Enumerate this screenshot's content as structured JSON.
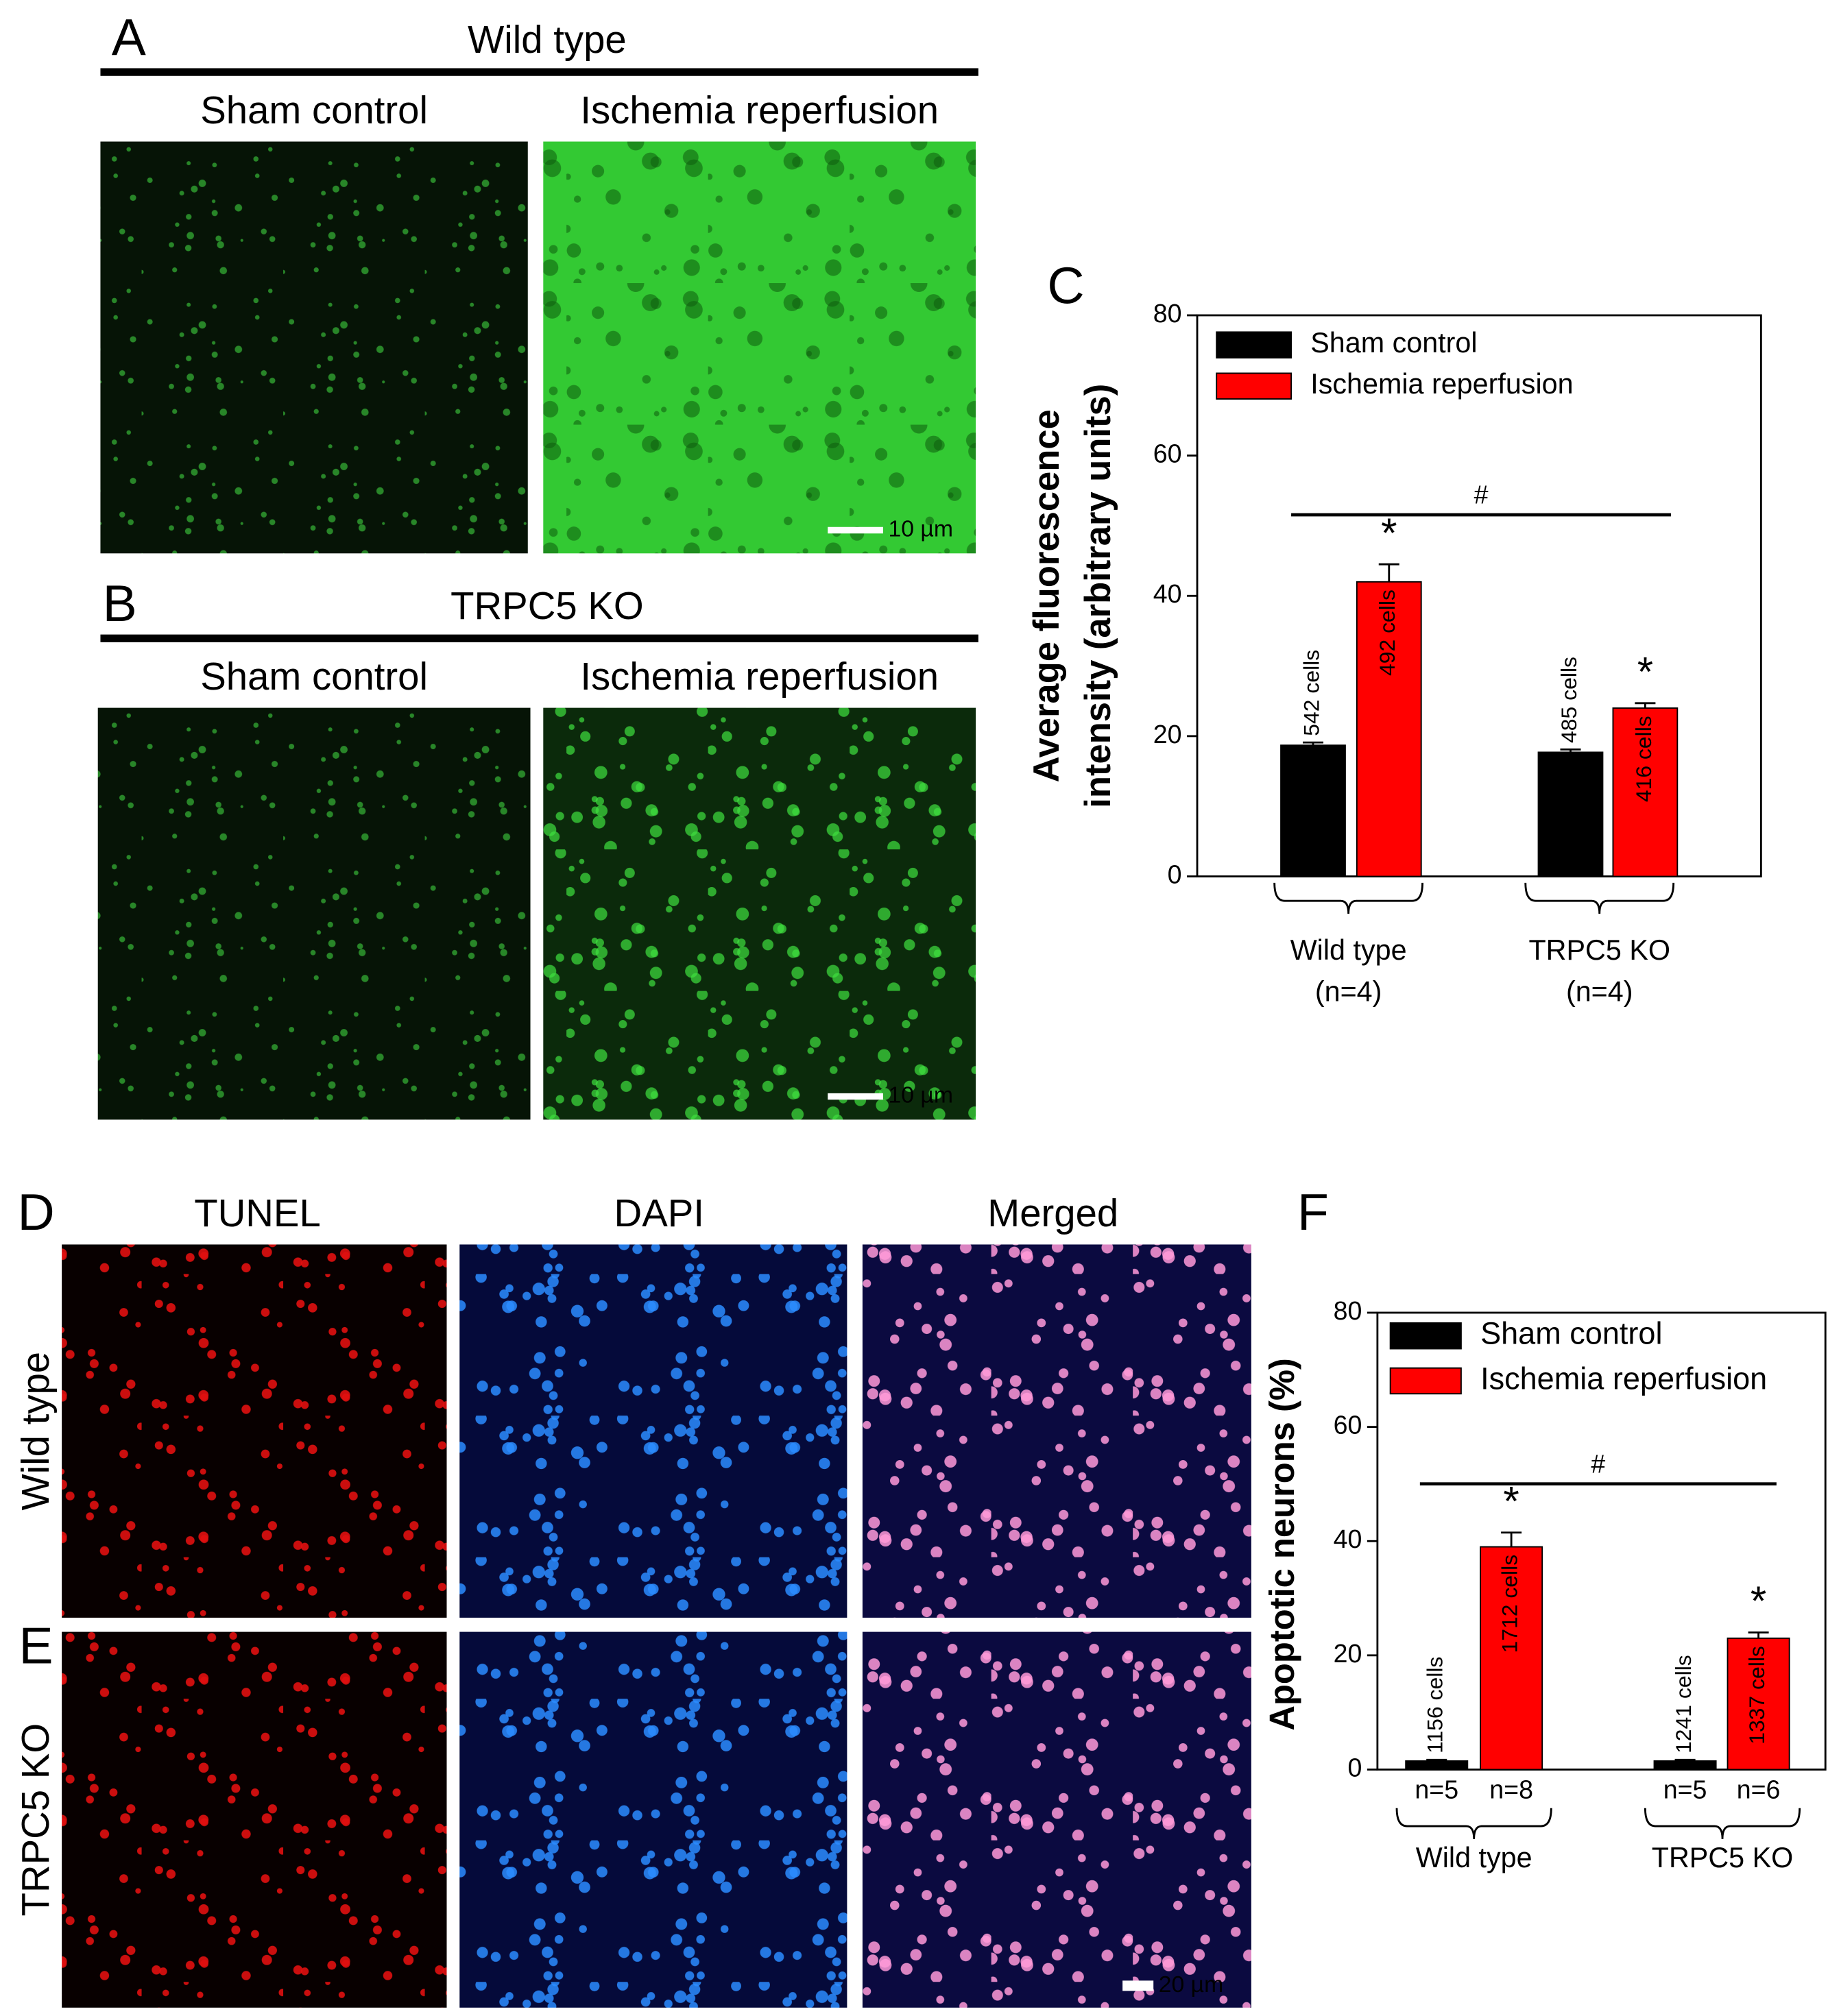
{
  "panels": [
    {
      "label": "A",
      "title": "Wild type",
      "columns": [
        "Sham control",
        "Ischemia reperfusion"
      ],
      "scale_bar": "10 µm"
    },
    {
      "label": "B",
      "title": "TRPC5 KO",
      "columns": [
        "Sham control",
        "Ischemia reperfusion"
      ],
      "scale_bar": "10 µm"
    }
  ],
  "tunel_panels": {
    "labels": [
      "D",
      "E"
    ],
    "columns": [
      "TUNEL",
      "DAPI",
      "Merged"
    ],
    "rows": [
      "Wild type",
      "TRPC5 KO"
    ],
    "scale_bar": "20 µm"
  },
  "chart_data": [
    {
      "type": "bar",
      "panel_label": "C",
      "ylabel": [
        "Average fluorescence",
        "intensity (arbitrary units)"
      ],
      "ylim": [
        0,
        80
      ],
      "yticks": [
        0,
        20,
        40,
        60,
        80
      ],
      "categories": [
        "Wild type",
        "TRPC5 KO"
      ],
      "category_notes": [
        "(n=4)",
        "(n=4)"
      ],
      "series": [
        {
          "name": "Sham control",
          "color": "#000000",
          "values": [
            18.7,
            17.7
          ],
          "errors": [
            0.4,
            0.4
          ],
          "cell_labels": [
            "542 cells",
            "485 cells"
          ]
        },
        {
          "name": "Ischemia reperfusion",
          "color": "#ff0000",
          "values": [
            42,
            24
          ],
          "errors": [
            2.5,
            0.7
          ],
          "cell_labels": [
            "492 cells",
            "416 cells"
          ],
          "marker": "*"
        }
      ],
      "group_marker": "#",
      "legend": "upper left"
    },
    {
      "type": "bar",
      "panel_label": "F",
      "ylabel": [
        "Apoptotic neurons (%)"
      ],
      "ylim": [
        0,
        80
      ],
      "yticks": [
        0,
        20,
        40,
        60,
        80
      ],
      "categories": [
        "Wild type",
        "TRPC5 KO"
      ],
      "series": [
        {
          "name": "Sham control",
          "color": "#000000",
          "values": [
            1.5,
            1.5
          ],
          "errors": [
            0.2,
            0.2
          ],
          "cell_labels": [
            "1156 cells",
            "1241 cells"
          ],
          "sample_labels": [
            "n=5",
            "n=5"
          ]
        },
        {
          "name": "Ischemia reperfusion",
          "color": "#ff0000",
          "values": [
            39,
            23
          ],
          "errors": [
            2.5,
            1
          ],
          "cell_labels": [
            "1712 cells",
            "1337 cells"
          ],
          "sample_labels": [
            "n=8",
            "n=6"
          ],
          "marker": "*"
        }
      ],
      "group_marker": "#",
      "legend": "upper left"
    }
  ]
}
